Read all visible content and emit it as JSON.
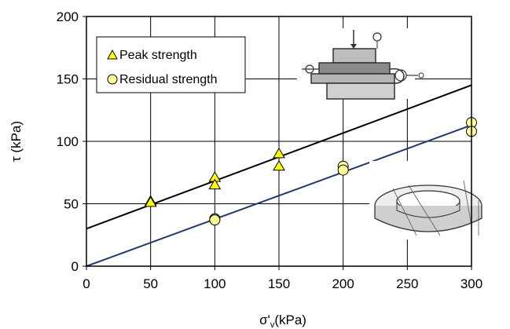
{
  "chart_data": {
    "type": "scatter",
    "xlabel_main": "σ'",
    "xlabel_sub": "v",
    "xlabel_unit": "(kPa)",
    "ylabel": "τ (kPa)",
    "xlim": [
      0,
      300
    ],
    "ylim": [
      0,
      200
    ],
    "x_ticks": [
      "0",
      "50",
      "100",
      "150",
      "200",
      "250",
      "300"
    ],
    "y_ticks": [
      "0",
      "50",
      "100",
      "150",
      "200"
    ],
    "grid": true,
    "legend_position": "top-left",
    "series": [
      {
        "name": "Peak strength",
        "marker": "triangle",
        "color": "#ffff00",
        "points": [
          [
            50,
            52
          ],
          [
            50,
            51
          ],
          [
            100,
            71
          ],
          [
            100,
            65
          ],
          [
            150,
            90
          ],
          [
            150,
            80
          ]
        ]
      },
      {
        "name": "Residual strength",
        "marker": "circle",
        "color": "#ffff99",
        "points": [
          [
            100,
            38
          ],
          [
            100,
            37
          ],
          [
            200,
            80
          ],
          [
            200,
            77
          ],
          [
            300,
            115
          ],
          [
            300,
            108
          ]
        ]
      }
    ],
    "trend_lines": [
      {
        "color": "#000000",
        "from": [
          0,
          30
        ],
        "to": [
          300,
          145
        ]
      },
      {
        "color": "#1f3a6b",
        "from": [
          0,
          0
        ],
        "to": [
          300,
          113
        ]
      }
    ]
  }
}
